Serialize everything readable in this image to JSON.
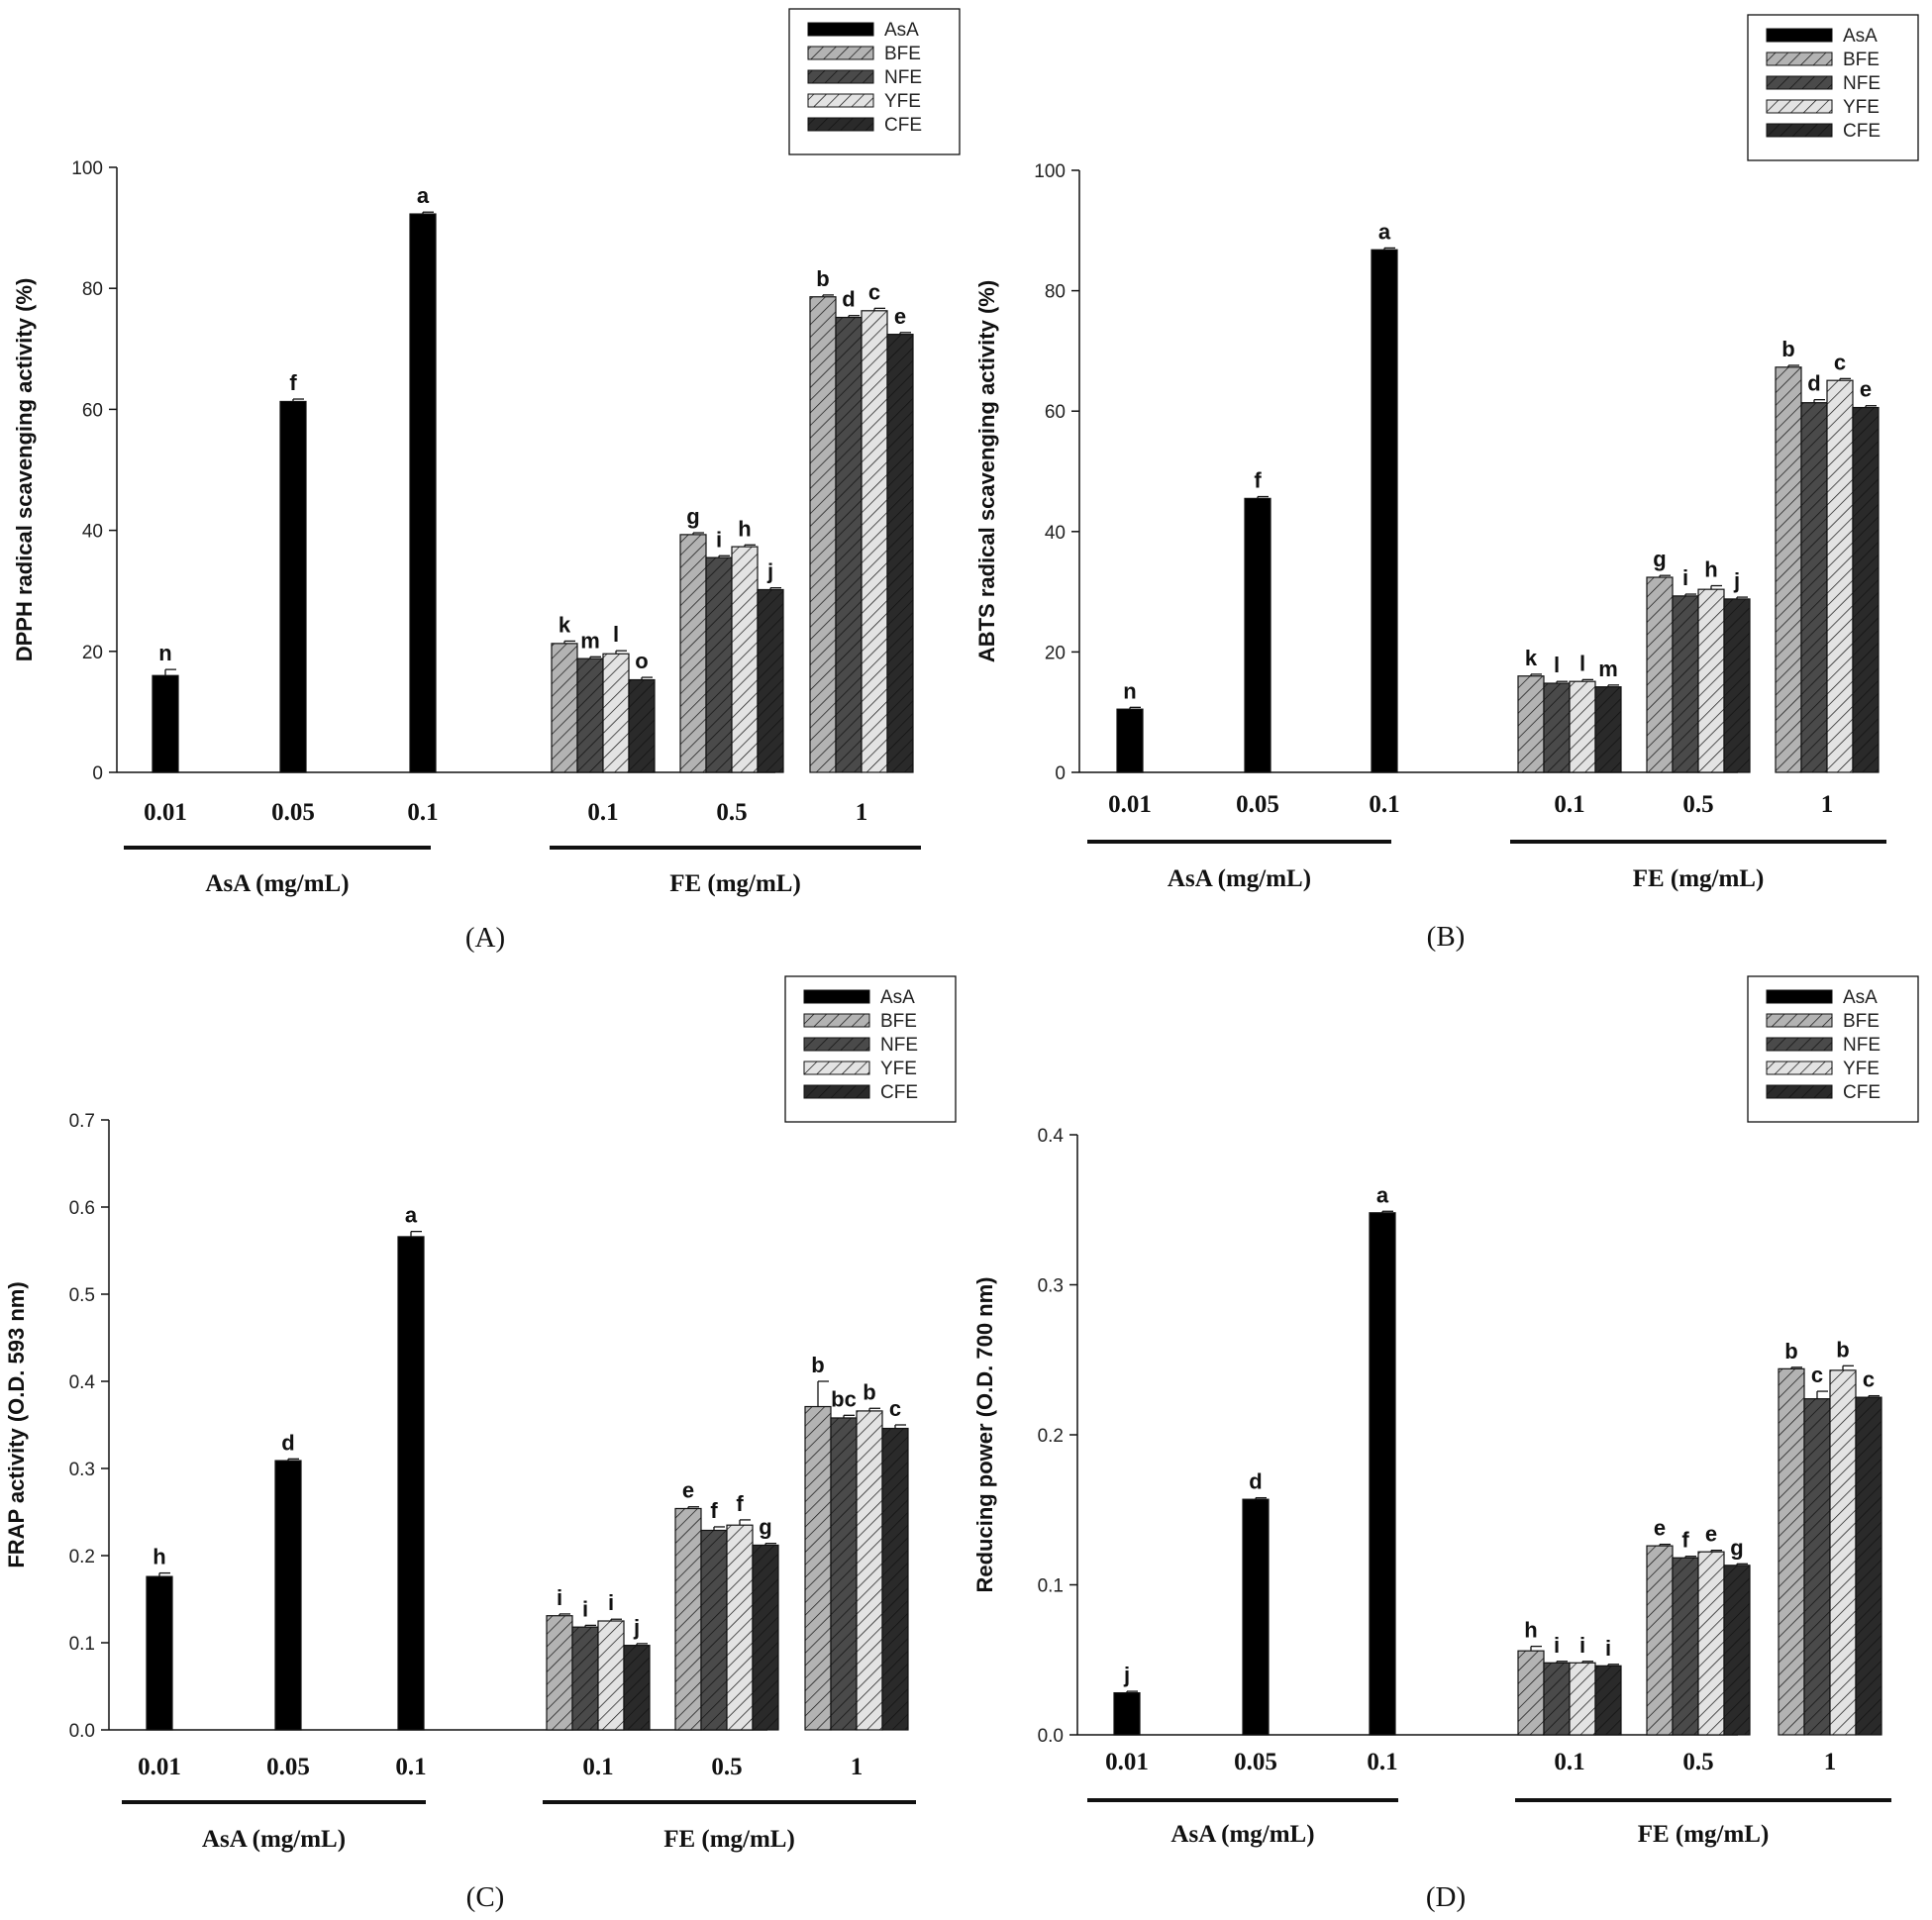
{
  "series_styles": {
    "AsA": {
      "color": "#000000",
      "pattern": "solid"
    },
    "BFE": {
      "color": "#b3b3b3",
      "pattern": "hatch"
    },
    "NFE": {
      "color": "#4a4a4a",
      "pattern": "hatch"
    },
    "YFE": {
      "color": "#e3e3e3",
      "pattern": "hatch"
    },
    "CFE": {
      "color": "#2a2a2a",
      "pattern": "hatch"
    }
  },
  "chart_data": [
    {
      "type": "bar",
      "panel": "(A)",
      "ylabel": "DPPH radical scavenging activity (%)",
      "ylim": [
        0,
        100
      ],
      "yticks": [
        "0",
        "20",
        "40",
        "60",
        "80",
        "100"
      ],
      "legend": [
        "AsA",
        "BFE",
        "NFE",
        "YFE",
        "CFE"
      ],
      "groups": [
        {
          "label": "AsA (mg/mL)",
          "categories": [
            {
              "label": "0.01",
              "bars": [
                {
                  "series": "AsA",
                  "value": 16.0,
                  "error": 1.0,
                  "letter": "n"
                }
              ]
            },
            {
              "label": "0.05",
              "bars": [
                {
                  "series": "AsA",
                  "value": 61.3,
                  "error": 0.4,
                  "letter": "f"
                }
              ]
            },
            {
              "label": "0.1",
              "bars": [
                {
                  "series": "AsA",
                  "value": 92.3,
                  "error": 0.3,
                  "letter": "a"
                }
              ]
            }
          ]
        },
        {
          "label": "FE (mg/mL)",
          "categories": [
            {
              "label": "0.1",
              "bars": [
                {
                  "series": "BFE",
                  "value": 21.3,
                  "error": 0.4,
                  "letter": "k"
                },
                {
                  "series": "NFE",
                  "value": 18.8,
                  "error": 0.3,
                  "letter": "m"
                },
                {
                  "series": "YFE",
                  "value": 19.6,
                  "error": 0.5,
                  "letter": "l"
                },
                {
                  "series": "CFE",
                  "value": 15.3,
                  "error": 0.4,
                  "letter": "o"
                }
              ]
            },
            {
              "label": "0.5",
              "bars": [
                {
                  "series": "BFE",
                  "value": 39.3,
                  "error": 0.3,
                  "letter": "g"
                },
                {
                  "series": "NFE",
                  "value": 35.5,
                  "error": 0.3,
                  "letter": "i"
                },
                {
                  "series": "YFE",
                  "value": 37.3,
                  "error": 0.3,
                  "letter": "h"
                },
                {
                  "series": "CFE",
                  "value": 30.2,
                  "error": 0.3,
                  "letter": "j"
                }
              ]
            },
            {
              "label": "1",
              "bars": [
                {
                  "series": "BFE",
                  "value": 78.6,
                  "error": 0.3,
                  "letter": "b"
                },
                {
                  "series": "NFE",
                  "value": 75.2,
                  "error": 0.3,
                  "letter": "d"
                },
                {
                  "series": "YFE",
                  "value": 76.3,
                  "error": 0.4,
                  "letter": "c"
                },
                {
                  "series": "CFE",
                  "value": 72.4,
                  "error": 0.3,
                  "letter": "e"
                }
              ]
            }
          ]
        }
      ]
    },
    {
      "type": "bar",
      "panel": "(B)",
      "ylabel": "ABTS radical scavenging activity (%)",
      "ylim": [
        0,
        100
      ],
      "yticks": [
        "0",
        "20",
        "40",
        "60",
        "80",
        "100"
      ],
      "legend": [
        "AsA",
        "BFE",
        "NFE",
        "YFE",
        "CFE"
      ],
      "groups": [
        {
          "label": "AsA (mg/mL)",
          "categories": [
            {
              "label": "0.01",
              "bars": [
                {
                  "series": "AsA",
                  "value": 10.5,
                  "error": 0.3,
                  "letter": "n"
                }
              ]
            },
            {
              "label": "0.05",
              "bars": [
                {
                  "series": "AsA",
                  "value": 45.5,
                  "error": 0.3,
                  "letter": "f"
                }
              ]
            },
            {
              "label": "0.1",
              "bars": [
                {
                  "series": "AsA",
                  "value": 86.8,
                  "error": 0.3,
                  "letter": "a"
                }
              ]
            }
          ]
        },
        {
          "label": "FE (mg/mL)",
          "categories": [
            {
              "label": "0.1",
              "bars": [
                {
                  "series": "BFE",
                  "value": 16.0,
                  "error": 0.3,
                  "letter": "k"
                },
                {
                  "series": "NFE",
                  "value": 14.8,
                  "error": 0.3,
                  "letter": "l"
                },
                {
                  "series": "YFE",
                  "value": 15.1,
                  "error": 0.3,
                  "letter": "l"
                },
                {
                  "series": "CFE",
                  "value": 14.2,
                  "error": 0.3,
                  "letter": "m"
                }
              ]
            },
            {
              "label": "0.5",
              "bars": [
                {
                  "series": "BFE",
                  "value": 32.4,
                  "error": 0.3,
                  "letter": "g"
                },
                {
                  "series": "NFE",
                  "value": 29.3,
                  "error": 0.3,
                  "letter": "i"
                },
                {
                  "series": "YFE",
                  "value": 30.4,
                  "error": 0.6,
                  "letter": "h"
                },
                {
                  "series": "CFE",
                  "value": 28.8,
                  "error": 0.3,
                  "letter": "j"
                }
              ]
            },
            {
              "label": "1",
              "bars": [
                {
                  "series": "BFE",
                  "value": 67.3,
                  "error": 0.3,
                  "letter": "b"
                },
                {
                  "series": "NFE",
                  "value": 61.4,
                  "error": 0.5,
                  "letter": "d"
                },
                {
                  "series": "YFE",
                  "value": 65.1,
                  "error": 0.3,
                  "letter": "c"
                },
                {
                  "series": "CFE",
                  "value": 60.6,
                  "error": 0.3,
                  "letter": "e"
                }
              ]
            }
          ]
        }
      ]
    },
    {
      "type": "bar",
      "panel": "(C)",
      "ylabel": "FRAP activity (O.D. 593 nm)",
      "ylim": [
        0,
        0.7
      ],
      "yticks": [
        "0.0",
        "0.1",
        "0.2",
        "0.3",
        "0.4",
        "0.5",
        "0.6",
        "0.7"
      ],
      "legend": [
        "AsA",
        "BFE",
        "NFE",
        "YFE",
        "CFE"
      ],
      "groups": [
        {
          "label": "AsA (mg/mL)",
          "categories": [
            {
              "label": "0.01",
              "bars": [
                {
                  "series": "AsA",
                  "value": 0.176,
                  "error": 0.004,
                  "letter": "h"
                }
              ]
            },
            {
              "label": "0.05",
              "bars": [
                {
                  "series": "AsA",
                  "value": 0.309,
                  "error": 0.002,
                  "letter": "d"
                }
              ]
            },
            {
              "label": "0.1",
              "bars": [
                {
                  "series": "AsA",
                  "value": 0.566,
                  "error": 0.006,
                  "letter": "a"
                }
              ]
            }
          ]
        },
        {
          "label": "FE (mg/mL)",
          "categories": [
            {
              "label": "0.1",
              "bars": [
                {
                  "series": "BFE",
                  "value": 0.131,
                  "error": 0.002,
                  "letter": "i"
                },
                {
                  "series": "NFE",
                  "value": 0.118,
                  "error": 0.002,
                  "letter": "i"
                },
                {
                  "series": "YFE",
                  "value": 0.125,
                  "error": 0.002,
                  "letter": "i"
                },
                {
                  "series": "CFE",
                  "value": 0.097,
                  "error": 0.002,
                  "letter": "j"
                }
              ]
            },
            {
              "label": "0.5",
              "bars": [
                {
                  "series": "BFE",
                  "value": 0.254,
                  "error": 0.002,
                  "letter": "e"
                },
                {
                  "series": "NFE",
                  "value": 0.229,
                  "error": 0.004,
                  "letter": "f"
                },
                {
                  "series": "YFE",
                  "value": 0.235,
                  "error": 0.006,
                  "letter": "f"
                },
                {
                  "series": "CFE",
                  "value": 0.212,
                  "error": 0.002,
                  "letter": "g"
                }
              ]
            },
            {
              "label": "1",
              "bars": [
                {
                  "series": "BFE",
                  "value": 0.371,
                  "error": 0.029,
                  "letter": "b"
                },
                {
                  "series": "NFE",
                  "value": 0.358,
                  "error": 0.003,
                  "letter": "bc"
                },
                {
                  "series": "YFE",
                  "value": 0.366,
                  "error": 0.003,
                  "letter": "b"
                },
                {
                  "series": "CFE",
                  "value": 0.346,
                  "error": 0.004,
                  "letter": "c"
                }
              ]
            }
          ]
        }
      ]
    },
    {
      "type": "bar",
      "panel": "(D)",
      "ylabel": "Reducing power (O.D. 700 nm)",
      "ylim": [
        0,
        0.4
      ],
      "yticks": [
        "0.0",
        "0.1",
        "0.2",
        "0.3",
        "0.4"
      ],
      "legend": [
        "AsA",
        "BFE",
        "NFE",
        "YFE",
        "CFE"
      ],
      "groups": [
        {
          "label": "AsA (mg/mL)",
          "categories": [
            {
              "label": "0.01",
              "bars": [
                {
                  "series": "AsA",
                  "value": 0.028,
                  "error": 0.001,
                  "letter": "j"
                }
              ]
            },
            {
              "label": "0.05",
              "bars": [
                {
                  "series": "AsA",
                  "value": 0.157,
                  "error": 0.001,
                  "letter": "d"
                }
              ]
            },
            {
              "label": "0.1",
              "bars": [
                {
                  "series": "AsA",
                  "value": 0.348,
                  "error": 0.001,
                  "letter": "a"
                }
              ]
            }
          ]
        },
        {
          "label": "FE (mg/mL)",
          "categories": [
            {
              "label": "0.1",
              "bars": [
                {
                  "series": "BFE",
                  "value": 0.056,
                  "error": 0.003,
                  "letter": "h"
                },
                {
                  "series": "NFE",
                  "value": 0.048,
                  "error": 0.001,
                  "letter": "i"
                },
                {
                  "series": "YFE",
                  "value": 0.048,
                  "error": 0.001,
                  "letter": "i"
                },
                {
                  "series": "CFE",
                  "value": 0.046,
                  "error": 0.001,
                  "letter": "i"
                }
              ]
            },
            {
              "label": "0.5",
              "bars": [
                {
                  "series": "BFE",
                  "value": 0.126,
                  "error": 0.001,
                  "letter": "e"
                },
                {
                  "series": "NFE",
                  "value": 0.118,
                  "error": 0.001,
                  "letter": "f"
                },
                {
                  "series": "YFE",
                  "value": 0.122,
                  "error": 0.001,
                  "letter": "e"
                },
                {
                  "series": "CFE",
                  "value": 0.113,
                  "error": 0.001,
                  "letter": "g"
                }
              ]
            },
            {
              "label": "1",
              "bars": [
                {
                  "series": "BFE",
                  "value": 0.244,
                  "error": 0.001,
                  "letter": "b"
                },
                {
                  "series": "NFE",
                  "value": 0.224,
                  "error": 0.005,
                  "letter": "c"
                },
                {
                  "series": "YFE",
                  "value": 0.243,
                  "error": 0.003,
                  "letter": "b"
                },
                {
                  "series": "CFE",
                  "value": 0.225,
                  "error": 0.001,
                  "letter": "c"
                }
              ]
            }
          ]
        }
      ]
    }
  ]
}
